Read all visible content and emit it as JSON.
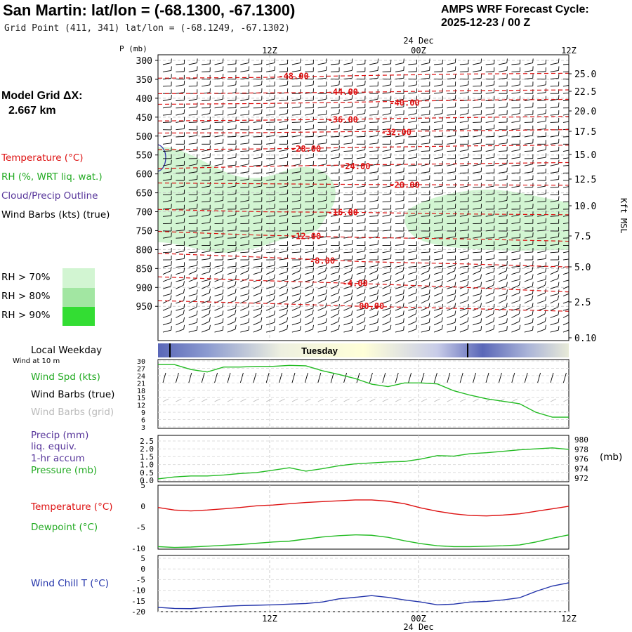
{
  "header": {
    "title": "San Martin:  lat/lon = (-68.1300, -67.1300)",
    "subtitle": "Grid Point (411, 341) lat/lon = (-68.1249, -67.1302)",
    "cycle_line1": "AMPS WRF Forecast Cycle:",
    "cycle_line2": "2025-12-23 / 00  Z"
  },
  "model_grid": {
    "label": "Model Grid ΔX:",
    "value": "2.667 km"
  },
  "legend": {
    "temperature": "Temperature (°C)",
    "rh": "RH (%, WRT liq. wat.)",
    "cloud": "Cloud/Precip Outline",
    "wind_barbs": "Wind Barbs (kts) (true)",
    "rh70": "RH > 70%",
    "rh80": "RH > 80%",
    "rh90": "RH > 90%"
  },
  "sfc_legend": {
    "weekday": "Local Weekday",
    "wind10": "Wind at 10 m",
    "wind_spd": "Wind Spd (kts)",
    "barbs_true": "Wind Barbs (true)",
    "barbs_grid": "Wind Barbs (grid)",
    "precip": "Precip (mm)",
    "liq": "liq. equiv.",
    "accum": "1-hr accum",
    "pressure": "Pressure (mb)",
    "pressure_unit": "(mb)",
    "temperature": "Temperature (°C)",
    "dewpoint": "Dewpoint (°C)",
    "windchill": "Wind Chill T (°C)"
  },
  "weekday_bar": {
    "label": "Tuesday"
  },
  "colors": {
    "temp": "#dd1111",
    "rh": "#22bb22",
    "cloud": "#3333aa",
    "rh70": "#d2f5d2",
    "rh80": "#a2e6a2",
    "rh90": "#33dd33",
    "grid_barb": "#bbbbbb",
    "windchill": "#2233aa"
  },
  "chart_data": [
    {
      "type": "contour",
      "name": "upper-air cross section",
      "time_labels_top": [
        "12Z",
        "24 Dec",
        "00Z",
        "12Z"
      ],
      "pressure_axis_label": "P (mb)",
      "pressure_levels": [
        300,
        350,
        400,
        450,
        500,
        550,
        600,
        650,
        700,
        750,
        800,
        850,
        900,
        950
      ],
      "height_axis_label": "Kft MSL",
      "height_levels": [
        "25.0",
        "22.5",
        "20.0",
        "17.5",
        "15.0",
        "12.5",
        "10.0",
        "7.5",
        "5.0",
        "2.5",
        "0.10"
      ],
      "temperature_contours": [
        {
          "label": "-48.00",
          "p": [
            347,
            345,
            340,
            336,
            334
          ],
          "lx": 0.33,
          "lp": 340
        },
        {
          "label": "-44.00",
          "p": [
            388,
            386,
            384,
            380,
            378
          ],
          "lx": 0.45,
          "lp": 382
        },
        {
          "label": "-40.00",
          "p": [
            416,
            414,
            410,
            405,
            403
          ],
          "lx": 0.6,
          "lp": 410
        },
        {
          "label": "-36.00",
          "p": [
            460,
            458,
            455,
            451,
            448
          ],
          "lx": 0.45,
          "lp": 455
        },
        {
          "label": "-32.00",
          "p": [
            492,
            491,
            488,
            486,
            483
          ],
          "lx": 0.58,
          "lp": 488
        },
        {
          "label": "-28.00",
          "p": [
            536,
            534,
            530,
            526,
            524
          ],
          "lx": 0.36,
          "lp": 532
        },
        {
          "label": "-24.00",
          "p": [
            586,
            580,
            576,
            573,
            570
          ],
          "lx": 0.48,
          "lp": 578
        },
        {
          "label": "-20.00",
          "p": [
            624,
            626,
            628,
            629,
            630
          ],
          "lx": 0.6,
          "lp": 628
        },
        {
          "label": "-16.00",
          "p": [
            694,
            700,
            702,
            706,
            708
          ],
          "lx": 0.45,
          "lp": 700
        },
        {
          "label": "-12.00",
          "p": [
            752,
            762,
            768,
            772,
            778
          ],
          "lx": 0.36,
          "lp": 763
        },
        {
          "label": "-8.00",
          "p": [
            810,
            820,
            832,
            838,
            846
          ],
          "lx": 0.4,
          "lp": 828
        },
        {
          "label": "-4.00",
          "p": [
            872,
            882,
            890,
            900,
            912
          ],
          "lx": 0.48,
          "lp": 887
        },
        {
          "label": "00.00",
          "p": [
            935,
            942,
            950,
            956,
            963
          ],
          "lx": 0.52,
          "lp": 948
        }
      ]
    },
    {
      "type": "line",
      "name": "wind speed",
      "ylabel": "Wind Spd (kts)",
      "y_ticks": [
        3,
        6,
        9,
        12,
        15,
        18,
        21,
        24,
        27,
        30
      ],
      "ylim": [
        3,
        30
      ],
      "x": [
        0,
        0.04,
        0.08,
        0.12,
        0.16,
        0.2,
        0.24,
        0.28,
        0.32,
        0.36,
        0.4,
        0.44,
        0.48,
        0.52,
        0.56,
        0.6,
        0.64,
        0.68,
        0.72,
        0.76,
        0.8,
        0.84,
        0.88,
        0.92,
        0.96,
        1.0
      ],
      "values": [
        28.5,
        28.5,
        26.5,
        25.5,
        27.5,
        27.5,
        27.8,
        27.8,
        28.2,
        28,
        26,
        24.5,
        22.8,
        20.5,
        19.5,
        21,
        21,
        20.6,
        17.8,
        16,
        14.5,
        13.5,
        12.5,
        9,
        7,
        7
      ]
    },
    {
      "type": "line",
      "name": "precip and pressure",
      "y_ticks_left": [
        "0.0",
        "0.5",
        "1.0",
        "1.5",
        "2.0",
        "2.5"
      ],
      "ylim_left": [
        0,
        2.5
      ],
      "y_ticks_right": [
        "980",
        "978",
        "976",
        "974",
        "972"
      ],
      "ylim_right": [
        971.6,
        980.6
      ],
      "x": [
        0,
        0.04,
        0.08,
        0.12,
        0.16,
        0.2,
        0.24,
        0.28,
        0.32,
        0.36,
        0.4,
        0.44,
        0.48,
        0.52,
        0.56,
        0.6,
        0.64,
        0.68,
        0.72,
        0.76,
        0.8,
        0.84,
        0.88,
        0.92,
        0.96,
        1.0
      ],
      "pressure": [
        971.9,
        972.3,
        972.5,
        972.5,
        972.7,
        973,
        973.2,
        973.7,
        974.2,
        973.5,
        974,
        974.6,
        975,
        975.2,
        975.4,
        975.5,
        976,
        976.7,
        976.6,
        977.1,
        977.3,
        977.6,
        977.9,
        978.1,
        978.3,
        978.0
      ]
    },
    {
      "type": "line",
      "name": "temperature and dewpoint",
      "y_ticks": [
        "5",
        "0",
        "-5",
        "-10"
      ],
      "ylim": [
        -10.2,
        5
      ],
      "x": [
        0,
        0.04,
        0.08,
        0.12,
        0.16,
        0.2,
        0.24,
        0.28,
        0.32,
        0.36,
        0.4,
        0.44,
        0.48,
        0.52,
        0.56,
        0.6,
        0.64,
        0.68,
        0.72,
        0.76,
        0.8,
        0.84,
        0.88,
        0.92,
        0.96,
        1.0
      ],
      "temperature": [
        -0.3,
        -0.9,
        -1.1,
        -0.9,
        -0.6,
        -0.3,
        0.1,
        0.3,
        0.6,
        0.9,
        1.1,
        1.3,
        1.5,
        1.5,
        1.2,
        0.6,
        -0.4,
        -1.2,
        -1.8,
        -2.2,
        -2.3,
        -2.1,
        -1.8,
        -1.2,
        -0.6,
        0
      ],
      "dewpoint": [
        -9.6,
        -9.8,
        -9.7,
        -9.5,
        -9.3,
        -9.1,
        -8.8,
        -8.5,
        -8.3,
        -7.8,
        -7.3,
        -7.0,
        -6.8,
        -6.9,
        -7.4,
        -8.2,
        -8.9,
        -9.4,
        -9.6,
        -9.6,
        -9.5,
        -9.4,
        -9.2,
        -8.5,
        -7.6,
        -6.8
      ]
    },
    {
      "type": "line",
      "name": "wind chill",
      "y_ticks": [
        "5",
        "0",
        "-5",
        "-10",
        "-15",
        "-20"
      ],
      "ylim": [
        -20,
        5
      ],
      "x": [
        0,
        0.04,
        0.08,
        0.12,
        0.16,
        0.2,
        0.24,
        0.28,
        0.32,
        0.36,
        0.4,
        0.44,
        0.48,
        0.52,
        0.56,
        0.6,
        0.64,
        0.68,
        0.72,
        0.76,
        0.8,
        0.84,
        0.88,
        0.92,
        0.96,
        1.0
      ],
      "values": [
        -18,
        -18.5,
        -18.6,
        -18,
        -17.5,
        -17.2,
        -17,
        -16.8,
        -16.5,
        -16.2,
        -15.5,
        -14,
        -13.3,
        -12.5,
        -13.3,
        -14.5,
        -15.5,
        -16.8,
        -16.5,
        -15.5,
        -15.2,
        -14.5,
        -13.5,
        -10.5,
        -8,
        -6.5
      ]
    }
  ],
  "bottom_axis": {
    "labels": [
      "12Z",
      "00Z",
      "12Z"
    ],
    "date": "24 Dec"
  }
}
